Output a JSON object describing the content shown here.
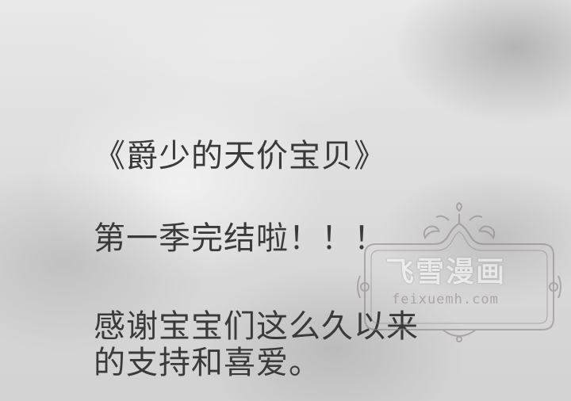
{
  "page": {
    "title_line": "《爵少的天价宝贝》",
    "subtitle_line": "第一季完结啦！！！",
    "thanks_line_1": "感谢宝宝们这么久以来",
    "thanks_line_2": "的支持和喜爱。"
  },
  "watermark": {
    "name_cn": "飞雪漫画",
    "url": "feixuemh.com",
    "color": "#8a7e86"
  },
  "colors": {
    "text": "#3a3a3a",
    "background": "#dcdcdc"
  }
}
